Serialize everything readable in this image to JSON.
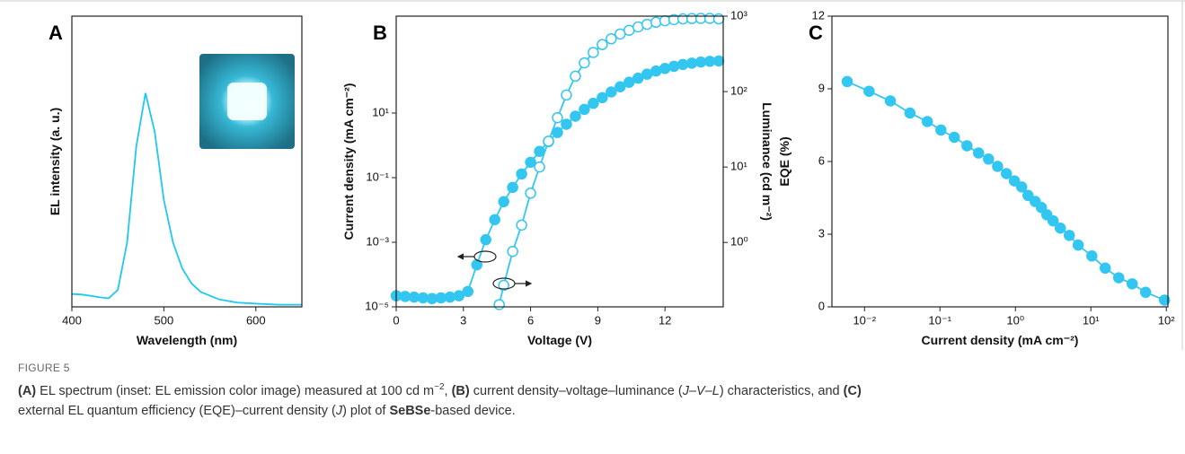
{
  "chart_data": [
    {
      "type": "line",
      "panel": "A",
      "xlabel": "Wavelength (nm)",
      "ylabel": "EL intensity (a. u.)",
      "xlim": [
        400,
        650
      ],
      "xticks": [
        400,
        500,
        600
      ],
      "ylim": [
        0,
        1.36
      ],
      "x": [
        400,
        410,
        420,
        430,
        440,
        450,
        460,
        470,
        480,
        490,
        500,
        510,
        520,
        530,
        540,
        560,
        580,
        600,
        625,
        650
      ],
      "series": [
        {
          "color": "#1ec8ee",
          "values": [
            0.06,
            0.058,
            0.052,
            0.045,
            0.04,
            0.08,
            0.3,
            0.75,
            1.0,
            0.82,
            0.5,
            0.3,
            0.18,
            0.11,
            0.07,
            0.035,
            0.02,
            0.015,
            0.01,
            0.01
          ]
        }
      ]
    },
    {
      "type": "line",
      "panel": "B",
      "xlabel": "Voltage (V)",
      "ylabel": "Current density (mA cm⁻²)",
      "y2label": "Luminance (cd m⁻²)",
      "xlim": [
        0,
        14.6
      ],
      "xticks": [
        0,
        3,
        6,
        9,
        12
      ],
      "ylog": true,
      "ylim": [
        1e-05,
        10000
      ],
      "yticks": [
        {
          "value": 1e-05,
          "label": "10⁻⁵"
        },
        {
          "value": 0.001,
          "label": "10⁻³"
        },
        {
          "value": 0.1,
          "label": "10⁻¹"
        },
        {
          "value": 10,
          "label": "10¹"
        }
      ],
      "y2log": true,
      "y2lim": [
        0.14,
        1000
      ],
      "y2ticks": [
        {
          "value": 1,
          "label": "10⁰"
        },
        {
          "value": 10,
          "label": "10¹"
        },
        {
          "value": 100,
          "label": "10²"
        },
        {
          "value": 1000,
          "label": "10³"
        }
      ],
      "series": [
        {
          "color": "#33c6f0",
          "marker": "filled",
          "x": [
            0,
            0.4,
            0.8,
            1.2,
            1.6,
            2.0,
            2.4,
            2.8,
            3.2,
            3.6,
            4.0,
            4.4,
            4.8,
            5.2,
            5.6,
            6.0,
            6.4,
            6.8,
            7.2,
            7.6,
            8.0,
            8.4,
            8.8,
            9.2,
            9.6,
            10.0,
            10.4,
            10.8,
            11.2,
            11.6,
            12.0,
            12.4,
            12.8,
            13.2,
            13.6,
            14.0,
            14.4
          ],
          "values": [
            2.2e-05,
            2.1e-05,
            2e-05,
            1.9e-05,
            1.8e-05,
            1.9e-05,
            2e-05,
            2.2e-05,
            3e-05,
            0.0002,
            0.0012,
            0.005,
            0.018,
            0.05,
            0.13,
            0.3,
            0.65,
            1.3,
            2.5,
            4.5,
            8,
            13,
            20,
            30,
            45,
            65,
            90,
            120,
            160,
            200,
            240,
            280,
            320,
            350,
            380,
            400,
            410
          ]
        },
        {
          "color": "#33c6f0",
          "marker": "open",
          "axis": "y2",
          "x": [
            4.6,
            4.8,
            5.2,
            5.6,
            6.0,
            6.4,
            6.8,
            7.2,
            7.6,
            8.0,
            8.4,
            8.8,
            9.2,
            9.6,
            10.0,
            10.4,
            10.8,
            11.2,
            11.6,
            12.0,
            12.4,
            12.8,
            13.2,
            13.6,
            14.0,
            14.4
          ],
          "values": [
            0.15,
            0.27,
            0.76,
            1.7,
            4.5,
            10,
            22,
            45,
            90,
            160,
            240,
            330,
            420,
            500,
            580,
            650,
            720,
            780,
            830,
            870,
            900,
            920,
            930,
            935,
            935,
            920
          ]
        }
      ]
    },
    {
      "type": "line",
      "panel": "C",
      "xlabel": "Current density (mA cm⁻²)",
      "ylabel": "EQE (%)",
      "xlog": true,
      "xlim": [
        0.0037,
        105
      ],
      "xticks": [
        {
          "value": 0.01,
          "label": "10⁻²"
        },
        {
          "value": 0.1,
          "label": "10⁻¹"
        },
        {
          "value": 1,
          "label": "10⁰"
        },
        {
          "value": 10,
          "label": "10¹"
        },
        {
          "value": 100,
          "label": "10²"
        }
      ],
      "ylim": [
        0,
        12
      ],
      "yticks": [
        0,
        3,
        6,
        9,
        12
      ],
      "series": [
        {
          "color": "#33c6f0",
          "marker": "filled",
          "x": [
            0.0059,
            0.0115,
            0.022,
            0.04,
            0.068,
            0.103,
            0.155,
            0.228,
            0.325,
            0.44,
            0.58,
            0.76,
            0.97,
            1.21,
            1.47,
            1.83,
            2.21,
            2.61,
            3.16,
            3.94,
            5.18,
            6.8,
            10.3,
            15.5,
            23.4,
            35.3,
            53.2,
            94.7
          ],
          "values": [
            9.3,
            8.9,
            8.5,
            8.0,
            7.65,
            7.3,
            7.0,
            6.65,
            6.35,
            6.1,
            5.8,
            5.5,
            5.2,
            4.95,
            4.6,
            4.35,
            4.1,
            3.8,
            3.55,
            3.25,
            2.95,
            2.55,
            2.1,
            1.6,
            1.2,
            0.95,
            0.6,
            0.28
          ]
        }
      ]
    }
  ],
  "caption": {
    "label": "FIGURE 5",
    "parts": [
      "(A)",
      " EL spectrum (inset: EL emission color image) measured at 100 cd m",
      "−2",
      ", ",
      "(B)",
      " current density–voltage–luminance (",
      "J–V–L",
      ") characteristics, and ",
      "(C)",
      "external EL quantum efficiency (EQE)–current density (",
      "J",
      ") plot of ",
      "SeBSe",
      "-based device."
    ]
  }
}
